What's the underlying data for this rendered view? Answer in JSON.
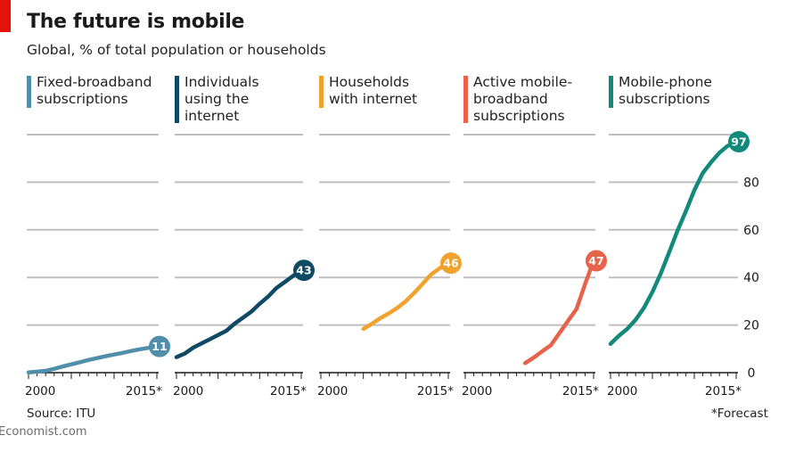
{
  "header": {
    "title": "The future is mobile",
    "subtitle": "Global, % of total population or households"
  },
  "footer": {
    "source": "Source: ITU",
    "note": "*Forecast",
    "brand": "Economist.com"
  },
  "chart_data": {
    "type": "line",
    "title": "The future is mobile",
    "subtitle": "Global, % of total population or households",
    "ylim": [
      0,
      100
    ],
    "yticks": [
      0,
      20,
      40,
      60,
      80
    ],
    "ytick_labels": [
      "0",
      "20",
      "40",
      "60",
      "80"
    ],
    "xlim": [
      2000,
      2015
    ],
    "xtick_labels": [
      "2000",
      "2015*"
    ],
    "grid": true,
    "series": [
      {
        "name": "Fixed-broadband subscriptions",
        "color": "#4f8fac",
        "end_label": "11",
        "x": [
          2000,
          2001,
          2002,
          2003,
          2004,
          2005,
          2006,
          2007,
          2008,
          2009,
          2010,
          2011,
          2012,
          2013,
          2014,
          2015
        ],
        "y": [
          0.1,
          0.4,
          0.8,
          1.6,
          2.6,
          3.5,
          4.4,
          5.3,
          6.1,
          6.9,
          7.6,
          8.3,
          9.1,
          9.8,
          10.4,
          11
        ]
      },
      {
        "name": "Individuals using the internet",
        "color": "#0e4a64",
        "end_label": "43",
        "x": [
          2000,
          2001,
          2002,
          2003,
          2004,
          2005,
          2006,
          2007,
          2008,
          2009,
          2010,
          2011,
          2012,
          2013,
          2014,
          2015
        ],
        "y": [
          6.5,
          8,
          10.5,
          12.3,
          14,
          15.8,
          17.6,
          20.6,
          23.1,
          25.6,
          28.9,
          31.9,
          35.5,
          38,
          40.6,
          43
        ]
      },
      {
        "name": "Households with internet",
        "color": "#f0a22e",
        "end_label": "46",
        "x": [
          2005,
          2006,
          2007,
          2008,
          2009,
          2010,
          2011,
          2012,
          2013,
          2014,
          2015
        ],
        "y": [
          18.4,
          20.5,
          22.9,
          24.9,
          27.2,
          30,
          33.6,
          37.4,
          41.3,
          43.9,
          46
        ]
      },
      {
        "name": "Active mobile-broadband subscriptions",
        "color": "#e5634a",
        "end_label": "47",
        "x": [
          2007,
          2008,
          2009,
          2010,
          2011,
          2012,
          2013,
          2014,
          2015
        ],
        "y": [
          4,
          6.3,
          9,
          11.5,
          16.6,
          21.7,
          26.7,
          37.2,
          47
        ]
      },
      {
        "name": "Mobile-phone subscriptions",
        "color": "#12897a",
        "end_label": "97",
        "x": [
          2000,
          2001,
          2002,
          2003,
          2004,
          2005,
          2006,
          2007,
          2008,
          2009,
          2010,
          2011,
          2012,
          2013,
          2014,
          2015
        ],
        "y": [
          12.1,
          15.5,
          18.4,
          22.2,
          27.3,
          33.9,
          41.7,
          50.6,
          59.7,
          67.9,
          76.6,
          83.8,
          88.4,
          92.4,
          95.3,
          97
        ]
      }
    ]
  },
  "legend": [
    "Fixed-broadband\nsubscriptions",
    "Individuals\nusing the\ninternet",
    "Households\nwith internet",
    "Active mobile-\nbroadband\nsubscriptions",
    "Mobile-phone\nsubscriptions"
  ]
}
